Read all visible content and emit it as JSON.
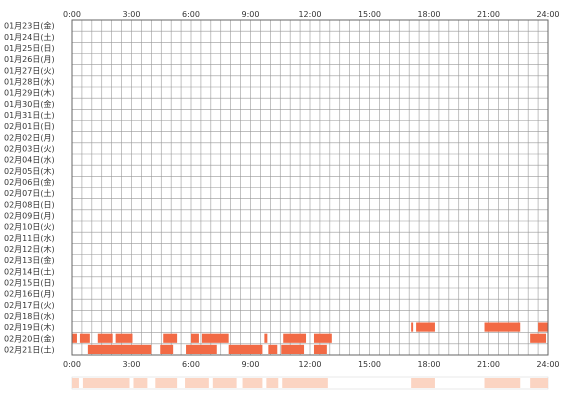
{
  "chart_data": {
    "type": "heatmap",
    "title": "",
    "xlabel": "",
    "ylabel": "",
    "x_unit": "hours",
    "xlim": [
      0,
      24
    ],
    "x_ticks": [
      "0:00",
      "3:00",
      "6:00",
      "9:00",
      "12:00",
      "15:00",
      "18:00",
      "21:00",
      "24:00"
    ],
    "grid": true,
    "colors": {
      "bar": "#f26a45",
      "summary": "#fbd4c2",
      "grid": "#999999",
      "frame": "#666666"
    },
    "rows": [
      {
        "label": "01月23日(金)",
        "segments": []
      },
      {
        "label": "01月24日(土)",
        "segments": []
      },
      {
        "label": "01月25日(日)",
        "segments": []
      },
      {
        "label": "01月26日(月)",
        "segments": []
      },
      {
        "label": "01月27日(火)",
        "segments": []
      },
      {
        "label": "01月28日(水)",
        "segments": []
      },
      {
        "label": "01月29日(木)",
        "segments": []
      },
      {
        "label": "01月30日(金)",
        "segments": []
      },
      {
        "label": "01月31日(土)",
        "segments": []
      },
      {
        "label": "02月01日(日)",
        "segments": []
      },
      {
        "label": "02月02日(月)",
        "segments": []
      },
      {
        "label": "02月03日(火)",
        "segments": []
      },
      {
        "label": "02月04日(水)",
        "segments": []
      },
      {
        "label": "02月05日(木)",
        "segments": []
      },
      {
        "label": "02月06日(金)",
        "segments": []
      },
      {
        "label": "02月07日(土)",
        "segments": []
      },
      {
        "label": "02月08日(日)",
        "segments": []
      },
      {
        "label": "02月09日(月)",
        "segments": []
      },
      {
        "label": "02月10日(火)",
        "segments": []
      },
      {
        "label": "02月11日(水)",
        "segments": []
      },
      {
        "label": "02月12日(木)",
        "segments": []
      },
      {
        "label": "02月13日(金)",
        "segments": []
      },
      {
        "label": "02月14日(土)",
        "segments": []
      },
      {
        "label": "02月15日(日)",
        "segments": []
      },
      {
        "label": "02月16日(月)",
        "segments": []
      },
      {
        "label": "02月17日(火)",
        "segments": []
      },
      {
        "label": "02月18日(水)",
        "segments": []
      },
      {
        "label": "02月19日(木)",
        "segments": [
          [
            17.1,
            17.2
          ],
          [
            17.35,
            18.3
          ],
          [
            20.8,
            22.6
          ],
          [
            23.5,
            24.0
          ]
        ]
      },
      {
        "label": "02月20日(金)",
        "segments": [
          [
            0.0,
            0.25
          ],
          [
            0.4,
            0.9
          ],
          [
            1.3,
            2.05
          ],
          [
            2.2,
            3.05
          ],
          [
            4.6,
            5.3
          ],
          [
            6.0,
            6.4
          ],
          [
            6.55,
            7.9
          ],
          [
            9.7,
            9.85
          ],
          [
            10.65,
            11.8
          ],
          [
            12.2,
            13.1
          ],
          [
            23.1,
            23.9
          ]
        ]
      },
      {
        "label": "02月21日(土)",
        "segments": [
          [
            0.8,
            4.0
          ],
          [
            4.45,
            5.1
          ],
          [
            5.75,
            7.3
          ],
          [
            7.9,
            9.6
          ],
          [
            9.9,
            10.35
          ],
          [
            10.55,
            11.7
          ],
          [
            12.2,
            12.85
          ]
        ]
      }
    ],
    "summary_segments": [
      [
        0.0,
        0.35
      ],
      [
        0.55,
        2.9
      ],
      [
        3.1,
        3.8
      ],
      [
        4.2,
        5.3
      ],
      [
        5.7,
        6.9
      ],
      [
        7.1,
        8.3
      ],
      [
        8.6,
        9.6
      ],
      [
        9.8,
        10.4
      ],
      [
        10.6,
        12.9
      ],
      [
        17.1,
        18.3
      ],
      [
        20.8,
        22.6
      ],
      [
        23.1,
        24.0
      ]
    ]
  }
}
